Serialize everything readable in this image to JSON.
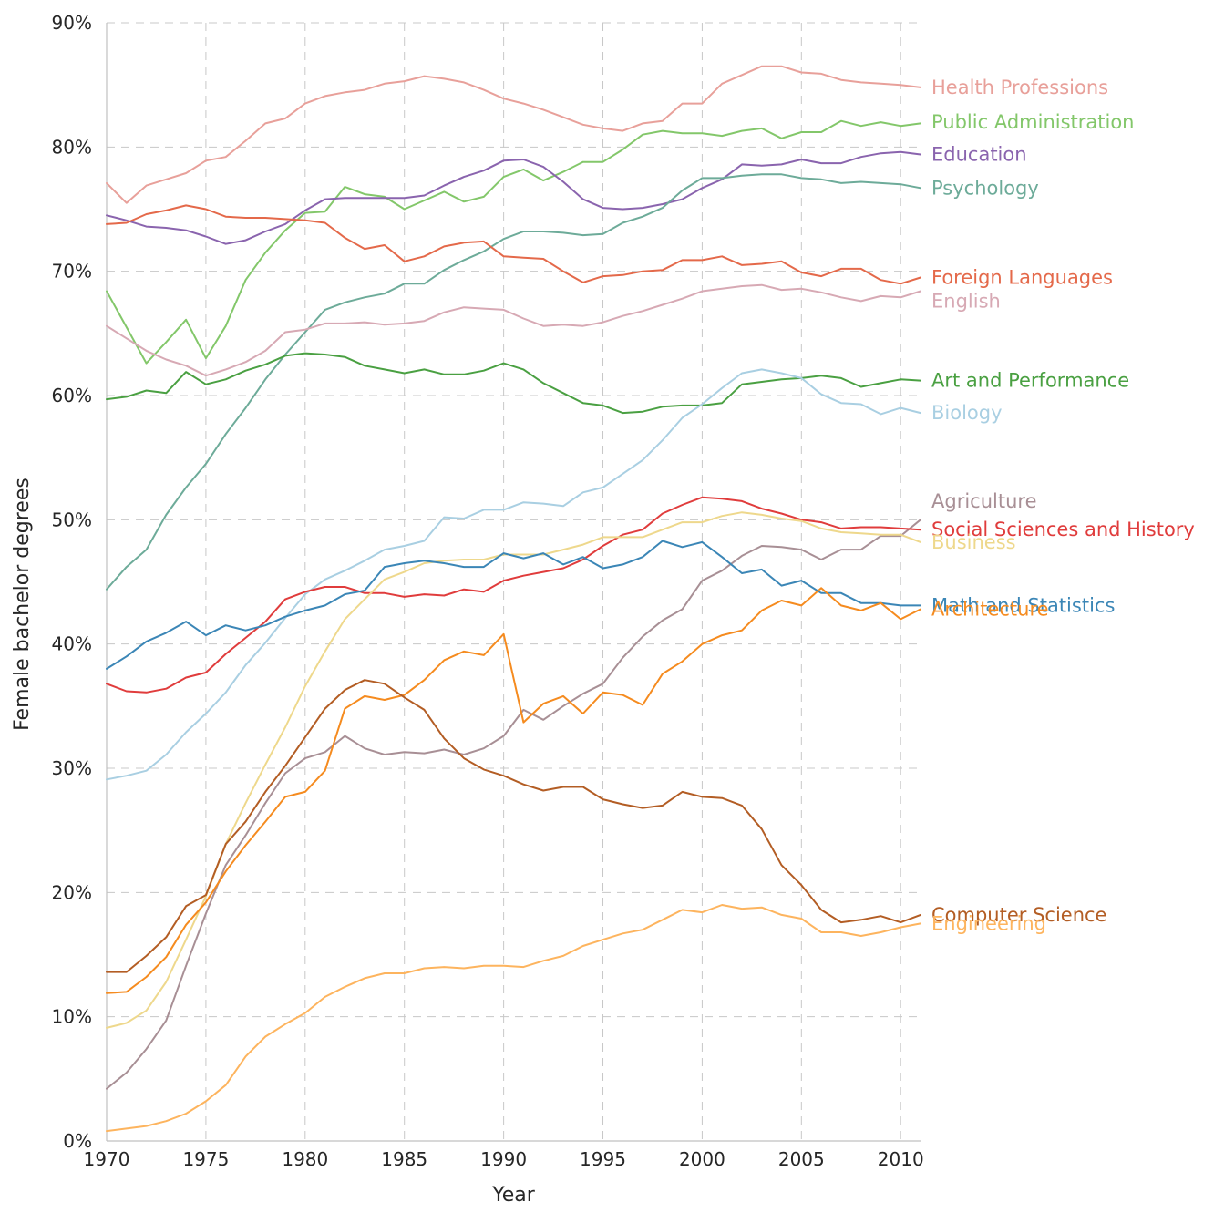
{
  "chart_data": {
    "type": "line",
    "title": "",
    "xlabel": "Year",
    "ylabel": "Female bachelor degrees",
    "xlim": [
      1970,
      2011
    ],
    "ylim": [
      0,
      90
    ],
    "x_ticks": [
      1970,
      1975,
      1980,
      1985,
      1990,
      1995,
      2000,
      2005,
      2010
    ],
    "x_tick_labels": [
      "1970",
      "1975",
      "1980",
      "1985",
      "1990",
      "1995",
      "2000",
      "2005",
      "2010"
    ],
    "y_ticks": [
      0,
      10,
      20,
      30,
      40,
      50,
      60,
      70,
      80,
      90
    ],
    "y_tick_labels": [
      "0%",
      "10%",
      "20%",
      "30%",
      "40%",
      "50%",
      "60%",
      "70%",
      "80%",
      "90%"
    ],
    "grid": true,
    "legend": "direct labels at right end of each line",
    "x": [
      1970,
      1971,
      1972,
      1973,
      1974,
      1975,
      1976,
      1977,
      1978,
      1979,
      1980,
      1981,
      1982,
      1983,
      1984,
      1985,
      1986,
      1987,
      1988,
      1989,
      1990,
      1991,
      1992,
      1993,
      1994,
      1995,
      1996,
      1997,
      1998,
      1999,
      2000,
      2001,
      2002,
      2003,
      2004,
      2005,
      2006,
      2007,
      2008,
      2009,
      2010,
      2011
    ],
    "series": [
      {
        "name": "Health Professions",
        "color": "#e8a09a",
        "label_y": 84.8,
        "values": [
          77.1,
          75.5,
          76.9,
          77.4,
          77.9,
          78.9,
          79.2,
          80.5,
          81.9,
          82.3,
          83.5,
          84.1,
          84.4,
          84.6,
          85.1,
          85.3,
          85.7,
          85.5,
          85.2,
          84.6,
          83.9,
          83.5,
          83.0,
          82.4,
          81.8,
          81.5,
          81.3,
          81.9,
          82.1,
          83.5,
          83.5,
          85.1,
          85.8,
          86.5,
          86.5,
          86.0,
          85.9,
          85.4,
          85.2,
          85.1,
          85.0,
          84.8
        ]
      },
      {
        "name": "Public Administration",
        "color": "#83c76a",
        "label_y": 82.0,
        "values": [
          68.4,
          65.5,
          62.6,
          64.3,
          66.1,
          63.0,
          65.6,
          69.3,
          71.5,
          73.3,
          74.7,
          74.8,
          76.8,
          76.2,
          76.0,
          75.0,
          75.7,
          76.4,
          75.6,
          76.0,
          77.6,
          78.2,
          77.3,
          78.0,
          78.8,
          78.8,
          79.8,
          81.0,
          81.3,
          81.1,
          81.1,
          80.9,
          81.3,
          81.5,
          80.7,
          81.2,
          81.2,
          82.1,
          81.7,
          82.0,
          81.7,
          81.9
        ]
      },
      {
        "name": "Education",
        "color": "#8a64ae",
        "label_y": 79.4,
        "values": [
          74.5,
          74.1,
          73.6,
          73.5,
          73.3,
          72.8,
          72.2,
          72.5,
          73.2,
          73.8,
          74.9,
          75.8,
          75.9,
          75.9,
          75.9,
          75.9,
          76.1,
          76.9,
          77.6,
          78.1,
          78.9,
          79.0,
          78.4,
          77.2,
          75.8,
          75.1,
          75.0,
          75.1,
          75.4,
          75.8,
          76.7,
          77.4,
          78.6,
          78.5,
          78.6,
          79.0,
          78.7,
          78.7,
          79.2,
          79.5,
          79.6,
          79.4
        ]
      },
      {
        "name": "Psychology",
        "color": "#6dab99",
        "label_y": 76.7,
        "values": [
          44.4,
          46.2,
          47.6,
          50.4,
          52.6,
          54.5,
          56.9,
          59.0,
          61.3,
          63.3,
          65.1,
          66.9,
          67.5,
          67.9,
          68.2,
          69.0,
          69.0,
          70.1,
          70.9,
          71.6,
          72.6,
          73.2,
          73.2,
          73.1,
          72.9,
          73.0,
          73.9,
          74.4,
          75.1,
          76.5,
          77.5,
          77.5,
          77.7,
          77.8,
          77.8,
          77.5,
          77.4,
          77.1,
          77.2,
          77.1,
          77.0,
          76.7
        ]
      },
      {
        "name": "Foreign Languages",
        "color": "#e4694a",
        "label_y": 69.5,
        "values": [
          73.8,
          73.9,
          74.6,
          74.9,
          75.3,
          75.0,
          74.4,
          74.3,
          74.3,
          74.2,
          74.1,
          73.9,
          72.7,
          71.8,
          72.1,
          70.8,
          71.2,
          72.0,
          72.3,
          72.4,
          71.2,
          71.1,
          71.0,
          70.0,
          69.1,
          69.6,
          69.7,
          70.0,
          70.1,
          70.9,
          70.9,
          71.2,
          70.5,
          70.6,
          70.8,
          69.9,
          69.6,
          70.2,
          70.2,
          69.3,
          69.0,
          69.5
        ]
      },
      {
        "name": "English",
        "color": "#d7a9b4",
        "label_y": 67.6,
        "values": [
          65.6,
          64.6,
          63.6,
          62.9,
          62.4,
          61.6,
          62.1,
          62.7,
          63.6,
          65.1,
          65.3,
          65.8,
          65.8,
          65.9,
          65.7,
          65.8,
          66.0,
          66.7,
          67.1,
          67.0,
          66.9,
          66.2,
          65.6,
          65.7,
          65.6,
          65.9,
          66.4,
          66.8,
          67.3,
          67.8,
          68.4,
          68.6,
          68.8,
          68.9,
          68.5,
          68.6,
          68.3,
          67.9,
          67.6,
          68.0,
          67.9,
          68.4
        ]
      },
      {
        "name": "Art and Performance",
        "color": "#4aa042",
        "label_y": 61.2,
        "values": [
          59.7,
          59.9,
          60.4,
          60.2,
          61.9,
          60.9,
          61.3,
          62.0,
          62.5,
          63.2,
          63.4,
          63.3,
          63.1,
          62.4,
          62.1,
          61.8,
          62.1,
          61.7,
          61.7,
          62.0,
          62.6,
          62.1,
          61.0,
          60.2,
          59.4,
          59.2,
          58.6,
          58.7,
          59.1,
          59.2,
          59.2,
          59.4,
          60.9,
          61.1,
          61.3,
          61.4,
          61.6,
          61.4,
          60.7,
          61.0,
          61.3,
          61.2
        ]
      },
      {
        "name": "Biology",
        "color": "#a9cfe2",
        "label_y": 58.6,
        "values": [
          29.1,
          29.4,
          29.8,
          31.1,
          32.9,
          34.4,
          36.1,
          38.3,
          40.1,
          42.1,
          44.0,
          45.2,
          45.9,
          46.7,
          47.6,
          47.9,
          48.3,
          50.2,
          50.1,
          50.8,
          50.8,
          51.4,
          51.3,
          51.1,
          52.2,
          52.6,
          53.7,
          54.8,
          56.4,
          58.2,
          59.3,
          60.6,
          61.8,
          62.1,
          61.8,
          61.4,
          60.1,
          59.4,
          59.3,
          58.5,
          59.0,
          58.6
        ]
      },
      {
        "name": "Agriculture",
        "color": "#a88f95",
        "label_y": 51.5,
        "values": [
          4.2,
          5.5,
          7.4,
          9.7,
          14.1,
          18.3,
          22.2,
          24.6,
          27.2,
          29.6,
          30.8,
          31.3,
          32.6,
          31.6,
          31.1,
          31.3,
          31.2,
          31.5,
          31.1,
          31.6,
          32.6,
          34.7,
          33.9,
          35.0,
          36.0,
          36.8,
          38.9,
          40.6,
          41.9,
          42.8,
          45.1,
          45.9,
          47.1,
          47.9,
          47.8,
          47.6,
          46.8,
          47.6,
          47.6,
          48.7,
          48.7,
          50.0
        ]
      },
      {
        "name": "Social Sciences and History",
        "color": "#e03c3c",
        "label_y": 49.2,
        "values": [
          36.8,
          36.2,
          36.1,
          36.4,
          37.3,
          37.7,
          39.2,
          40.5,
          41.8,
          43.6,
          44.2,
          44.6,
          44.6,
          44.1,
          44.1,
          43.8,
          44.0,
          43.9,
          44.4,
          44.2,
          45.1,
          45.5,
          45.8,
          46.1,
          46.8,
          47.9,
          48.8,
          49.2,
          50.5,
          51.2,
          51.8,
          51.7,
          51.5,
          50.9,
          50.5,
          50.0,
          49.8,
          49.3,
          49.4,
          49.4,
          49.3,
          49.2
        ]
      },
      {
        "name": "Business",
        "color": "#eed88c",
        "label_y": 48.2,
        "values": [
          9.1,
          9.5,
          10.5,
          12.8,
          16.2,
          19.7,
          23.9,
          27.2,
          30.3,
          33.3,
          36.6,
          39.4,
          42.0,
          43.6,
          45.2,
          45.8,
          46.5,
          46.7,
          46.8,
          46.8,
          47.2,
          47.2,
          47.2,
          47.6,
          48.0,
          48.6,
          48.6,
          48.6,
          49.2,
          49.8,
          49.8,
          50.3,
          50.6,
          50.4,
          50.1,
          49.9,
          49.3,
          49.0,
          48.9,
          48.8,
          48.8,
          48.2
        ]
      },
      {
        "name": "Math and Statistics",
        "color": "#3b86b6",
        "label_y": 43.1,
        "values": [
          38.0,
          39.0,
          40.2,
          40.9,
          41.8,
          40.7,
          41.5,
          41.1,
          41.5,
          42.2,
          42.7,
          43.1,
          44.0,
          44.3,
          46.2,
          46.5,
          46.7,
          46.5,
          46.2,
          46.2,
          47.3,
          46.9,
          47.3,
          46.4,
          47.0,
          46.1,
          46.4,
          47.0,
          48.3,
          47.8,
          48.2,
          47.0,
          45.7,
          46.0,
          44.7,
          45.1,
          44.1,
          44.1,
          43.3,
          43.3,
          43.1,
          43.1
        ]
      },
      {
        "name": "Architecture",
        "color": "#f58b1f",
        "label_y": 42.8,
        "values": [
          11.9,
          12.0,
          13.2,
          14.8,
          17.4,
          19.2,
          21.7,
          23.8,
          25.7,
          27.7,
          28.1,
          29.8,
          34.8,
          35.8,
          35.5,
          35.9,
          37.1,
          38.7,
          39.4,
          39.1,
          40.8,
          33.7,
          35.2,
          35.8,
          34.4,
          36.1,
          35.9,
          35.1,
          37.6,
          38.6,
          40.0,
          40.7,
          41.1,
          42.7,
          43.5,
          43.1,
          44.5,
          43.1,
          42.7,
          43.3,
          42.0,
          42.8
        ]
      },
      {
        "name": "Computer Science",
        "color": "#b35d24",
        "label_y": 18.2,
        "values": [
          13.6,
          13.6,
          14.9,
          16.4,
          18.9,
          19.8,
          23.9,
          25.7,
          28.1,
          30.2,
          32.5,
          34.8,
          36.3,
          37.1,
          36.8,
          35.7,
          34.7,
          32.4,
          30.8,
          29.9,
          29.4,
          28.7,
          28.2,
          28.5,
          28.5,
          27.5,
          27.1,
          26.8,
          27.0,
          28.1,
          27.7,
          27.6,
          27.0,
          25.1,
          22.2,
          20.6,
          18.6,
          17.6,
          17.8,
          18.1,
          17.6,
          18.2
        ]
      },
      {
        "name": "Engineering",
        "color": "#fdb45e",
        "label_y": 17.5,
        "values": [
          0.8,
          1.0,
          1.2,
          1.6,
          2.2,
          3.2,
          4.5,
          6.8,
          8.4,
          9.4,
          10.3,
          11.6,
          12.4,
          13.1,
          13.5,
          13.5,
          13.9,
          14.0,
          13.9,
          14.1,
          14.1,
          14.0,
          14.5,
          14.9,
          15.7,
          16.2,
          16.7,
          17.0,
          17.8,
          18.6,
          18.4,
          19.0,
          18.7,
          18.8,
          18.2,
          17.9,
          16.8,
          16.8,
          16.5,
          16.8,
          17.2,
          17.5
        ]
      }
    ]
  }
}
